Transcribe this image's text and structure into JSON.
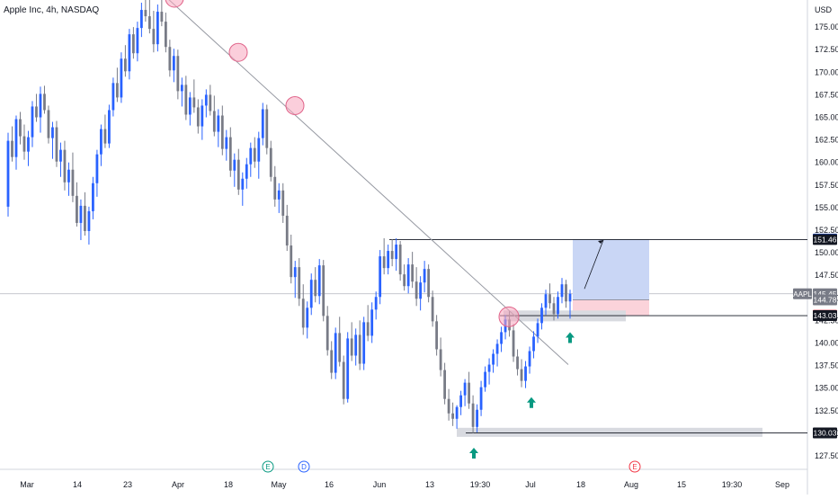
{
  "header": {
    "symbol_title": "Apple Inc, 4h, NASDAQ",
    "currency": "USD"
  },
  "colors": {
    "up": "#2962ff",
    "down": "#787b86",
    "marker": "#089981",
    "touch": "#f7a6bd",
    "long_tp": "#c9d6f5",
    "long_sl": "#fbd3da"
  },
  "chart_data": {
    "type": "candlestick",
    "title": "Apple Inc, 4h, NASDAQ",
    "ylim": [
      126,
      178
    ],
    "y_ticks": [
      "127.50",
      "130.00",
      "132.50",
      "135.00",
      "137.50",
      "140.00",
      "142.50",
      "145.00",
      "147.50",
      "150.00",
      "152.50",
      "155.00",
      "157.50",
      "160.00",
      "162.50",
      "165.00",
      "167.50",
      "170.00",
      "172.50",
      "175.00"
    ],
    "x_ticks": [
      "Mar",
      "14",
      "23",
      "Apr",
      "18",
      "May",
      "16",
      "Jun",
      "13",
      "19:30",
      "Jul",
      "18",
      "Aug",
      "15",
      "19:30",
      "Sep"
    ],
    "price_labels": [
      {
        "text": "151.51",
        "role": "tp"
      },
      {
        "text": "151.46",
        "role": "level"
      },
      {
        "text": "145.45",
        "role": "last",
        "tag": "AAPL"
      },
      {
        "text": "144.78",
        "role": "entry"
      },
      {
        "text": "143.07",
        "role": "sl"
      },
      {
        "text": "143.03",
        "role": "level"
      },
      {
        "text": "130.03",
        "role": "level"
      }
    ],
    "levels": [
      151.46,
      143.03,
      130.03
    ],
    "last_price": 145.45,
    "long_position": {
      "entry": 144.78,
      "target": 151.51,
      "stop": 143.07
    },
    "trendline": {
      "from": [
        0,
        178.2
      ],
      "to": [
        1,
        137.6
      ]
    },
    "touch_points": [
      178.2,
      172.2,
      166.3,
      142.9
    ],
    "event_badges": [
      "E",
      "D",
      "E"
    ],
    "candles_ohlc": [
      [
        155.1,
        163.3,
        154.0,
        162.4
      ],
      [
        162.4,
        164.0,
        160.1,
        160.6
      ],
      [
        160.6,
        165.2,
        159.2,
        164.8
      ],
      [
        164.8,
        165.6,
        162.0,
        162.9
      ],
      [
        162.9,
        164.2,
        160.3,
        161.2
      ],
      [
        161.2,
        163.5,
        159.6,
        162.8
      ],
      [
        162.8,
        166.8,
        161.7,
        166.2
      ],
      [
        166.2,
        167.6,
        164.5,
        165.0
      ],
      [
        165.0,
        168.4,
        163.3,
        167.6
      ],
      [
        167.6,
        168.5,
        165.4,
        165.8
      ],
      [
        165.8,
        166.3,
        162.1,
        162.7
      ],
      [
        162.7,
        164.5,
        160.4,
        163.9
      ],
      [
        163.9,
        164.6,
        159.5,
        160.1
      ],
      [
        160.1,
        162.2,
        158.4,
        161.4
      ],
      [
        161.4,
        162.4,
        156.9,
        157.8
      ],
      [
        157.8,
        160.0,
        156.3,
        159.2
      ],
      [
        159.2,
        161.1,
        155.6,
        156.3
      ],
      [
        156.3,
        157.8,
        152.9,
        153.3
      ],
      [
        153.3,
        155.9,
        151.4,
        155.2
      ],
      [
        155.2,
        156.7,
        151.9,
        152.4
      ],
      [
        152.4,
        155.1,
        150.9,
        154.6
      ],
      [
        154.6,
        158.4,
        153.7,
        157.7
      ],
      [
        157.7,
        161.4,
        156.2,
        160.9
      ],
      [
        160.9,
        164.2,
        159.6,
        163.7
      ],
      [
        163.7,
        165.3,
        161.6,
        162.1
      ],
      [
        162.1,
        166.4,
        161.6,
        165.8
      ],
      [
        165.8,
        169.4,
        165.1,
        168.8
      ],
      [
        168.8,
        170.5,
        166.7,
        167.2
      ],
      [
        167.2,
        172.2,
        166.6,
        171.5
      ],
      [
        171.5,
        173.0,
        169.5,
        170.1
      ],
      [
        170.1,
        174.8,
        169.2,
        174.2
      ],
      [
        174.2,
        175.0,
        171.5,
        172.1
      ],
      [
        172.1,
        175.6,
        171.2,
        174.9
      ],
      [
        174.9,
        177.7,
        173.9,
        176.9
      ],
      [
        176.9,
        178.9,
        175.6,
        176.2
      ],
      [
        176.2,
        178.1,
        174.3,
        174.8
      ],
      [
        174.8,
        176.8,
        172.2,
        173.1
      ],
      [
        173.1,
        177.5,
        172.3,
        176.7
      ],
      [
        176.7,
        178.6,
        175.1,
        175.6
      ],
      [
        175.6,
        176.6,
        172.2,
        172.8
      ],
      [
        172.8,
        173.6,
        169.5,
        170.2
      ],
      [
        170.2,
        172.6,
        168.9,
        171.8
      ],
      [
        171.8,
        172.5,
        167.0,
        167.9
      ],
      [
        167.9,
        169.4,
        166.2,
        168.6
      ],
      [
        168.6,
        169.6,
        164.7,
        165.3
      ],
      [
        165.3,
        167.8,
        164.1,
        167.2
      ],
      [
        167.2,
        169.2,
        165.5,
        166.1
      ],
      [
        166.1,
        167.0,
        163.2,
        164.0
      ],
      [
        164.0,
        167.0,
        162.5,
        166.3
      ],
      [
        166.3,
        168.1,
        165.0,
        167.5
      ],
      [
        167.5,
        168.6,
        165.2,
        165.7
      ],
      [
        165.7,
        167.4,
        162.9,
        163.4
      ],
      [
        163.4,
        165.9,
        161.7,
        165.2
      ],
      [
        165.2,
        166.3,
        160.8,
        161.5
      ],
      [
        161.5,
        163.6,
        160.2,
        162.8
      ],
      [
        162.8,
        163.9,
        158.4,
        159.1
      ],
      [
        159.1,
        161.0,
        157.3,
        160.3
      ],
      [
        160.3,
        161.5,
        156.4,
        157.0
      ],
      [
        157.0,
        158.9,
        155.2,
        158.2
      ],
      [
        158.2,
        160.5,
        157.1,
        159.8
      ],
      [
        159.8,
        162.2,
        158.4,
        161.6
      ],
      [
        161.6,
        162.8,
        159.4,
        160.1
      ],
      [
        160.1,
        163.4,
        158.2,
        162.7
      ],
      [
        162.7,
        166.6,
        161.9,
        165.9
      ],
      [
        165.9,
        166.4,
        160.9,
        161.6
      ],
      [
        161.6,
        162.4,
        157.9,
        158.4
      ],
      [
        158.4,
        159.6,
        155.1,
        155.9
      ],
      [
        155.9,
        157.7,
        154.4,
        156.9
      ],
      [
        156.9,
        157.7,
        153.3,
        154.1
      ],
      [
        154.1,
        155.3,
        150.2,
        150.8
      ],
      [
        150.8,
        152.0,
        146.6,
        147.3
      ],
      [
        147.3,
        149.1,
        145.0,
        148.4
      ],
      [
        148.4,
        149.4,
        144.1,
        144.9
      ],
      [
        144.9,
        146.5,
        140.9,
        141.7
      ],
      [
        141.7,
        144.6,
        140.5,
        143.9
      ],
      [
        143.9,
        147.7,
        143.1,
        147.0
      ],
      [
        147.0,
        148.4,
        144.5,
        145.2
      ],
      [
        145.2,
        149.3,
        144.3,
        148.6
      ],
      [
        148.6,
        149.2,
        142.4,
        143.0
      ],
      [
        143.0,
        144.1,
        138.6,
        139.2
      ],
      [
        139.2,
        140.2,
        136.0,
        136.7
      ],
      [
        136.7,
        141.7,
        136.0,
        141.1
      ],
      [
        141.1,
        142.9,
        137.4,
        137.9
      ],
      [
        137.9,
        138.6,
        133.2,
        133.8
      ],
      [
        133.8,
        141.2,
        133.4,
        140.5
      ],
      [
        140.5,
        142.3,
        138.0,
        138.6
      ],
      [
        138.6,
        141.6,
        137.5,
        140.9
      ],
      [
        140.9,
        142.5,
        137.0,
        137.7
      ],
      [
        137.7,
        142.9,
        137.0,
        142.3
      ],
      [
        142.3,
        144.2,
        140.2,
        140.8
      ],
      [
        140.8,
        144.5,
        140.0,
        143.7
      ],
      [
        143.7,
        145.7,
        142.6,
        145.1
      ],
      [
        145.1,
        150.3,
        144.3,
        149.6
      ],
      [
        149.6,
        151.6,
        147.6,
        148.3
      ],
      [
        148.3,
        150.9,
        147.6,
        150.2
      ],
      [
        150.2,
        151.5,
        148.5,
        149.3
      ],
      [
        149.3,
        151.6,
        148.0,
        150.9
      ],
      [
        150.9,
        151.3,
        146.9,
        147.6
      ],
      [
        147.6,
        148.7,
        145.8,
        146.3
      ],
      [
        146.3,
        149.4,
        145.5,
        148.7
      ],
      [
        148.7,
        150.1,
        146.1,
        146.8
      ],
      [
        146.8,
        148.4,
        144.1,
        144.9
      ],
      [
        144.9,
        147.4,
        143.6,
        146.7
      ],
      [
        146.7,
        149.1,
        145.6,
        148.2
      ],
      [
        148.2,
        148.7,
        144.5,
        145.1
      ],
      [
        145.1,
        145.8,
        141.8,
        142.4
      ],
      [
        142.4,
        143.1,
        138.6,
        139.3
      ],
      [
        139.3,
        140.6,
        136.3,
        137.0
      ],
      [
        137.0,
        137.8,
        133.2,
        133.8
      ],
      [
        133.8,
        134.9,
        131.4,
        132.2
      ],
      [
        132.2,
        133.4,
        130.8,
        131.6
      ],
      [
        131.6,
        133.1,
        130.5,
        132.9
      ],
      [
        132.9,
        134.7,
        132.0,
        134.2
      ],
      [
        134.2,
        136.0,
        133.0,
        135.6
      ],
      [
        135.6,
        136.8,
        132.7,
        133.3
      ],
      [
        133.3,
        134.2,
        130.0,
        130.7
      ],
      [
        130.7,
        133.2,
        130.1,
        132.6
      ],
      [
        132.6,
        135.8,
        131.9,
        135.1
      ],
      [
        135.1,
        137.4,
        134.6,
        136.8
      ],
      [
        136.8,
        138.3,
        135.4,
        137.6
      ],
      [
        137.6,
        139.3,
        136.7,
        138.8
      ],
      [
        138.8,
        140.4,
        137.4,
        139.9
      ],
      [
        139.9,
        141.8,
        139.0,
        141.2
      ],
      [
        141.2,
        143.1,
        140.4,
        142.6
      ],
      [
        142.6,
        143.5,
        140.7,
        141.4
      ],
      [
        141.4,
        142.1,
        137.9,
        138.5
      ],
      [
        138.5,
        139.3,
        136.4,
        137.1
      ],
      [
        137.1,
        138.2,
        135.1,
        135.8
      ],
      [
        135.8,
        138.0,
        135.0,
        137.4
      ],
      [
        137.4,
        139.6,
        136.6,
        139.1
      ],
      [
        139.1,
        141.3,
        138.3,
        140.7
      ],
      [
        140.7,
        142.7,
        140.0,
        142.2
      ],
      [
        142.2,
        144.4,
        141.5,
        143.9
      ],
      [
        143.9,
        145.9,
        143.1,
        145.4
      ],
      [
        145.4,
        146.6,
        143.8,
        144.4
      ],
      [
        144.4,
        145.1,
        142.5,
        143.2
      ],
      [
        143.2,
        145.7,
        142.7,
        145.1
      ],
      [
        145.1,
        147.2,
        144.4,
        146.5
      ],
      [
        146.5,
        147.0,
        143.9,
        144.6
      ],
      [
        144.6,
        145.9,
        142.7,
        145.45
      ]
    ]
  }
}
